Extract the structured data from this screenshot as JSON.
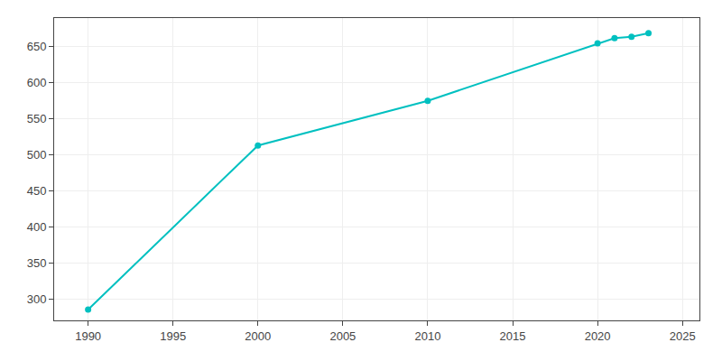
{
  "chart_data": {
    "type": "line",
    "x": [
      1990,
      2000,
      2010,
      2020,
      2021,
      2022,
      2023
    ],
    "values": [
      285,
      513,
      575,
      655,
      662,
      664,
      669
    ],
    "color": "#00C0C0",
    "marker": "circle",
    "line_style": "solid",
    "xlim": [
      1988,
      2026
    ],
    "ylim": [
      270,
      690
    ],
    "xticks": [
      1990,
      1995,
      2000,
      2005,
      2010,
      2015,
      2020,
      2025
    ],
    "yticks": [
      300,
      350,
      400,
      450,
      500,
      550,
      600,
      650
    ],
    "grid": true
  }
}
